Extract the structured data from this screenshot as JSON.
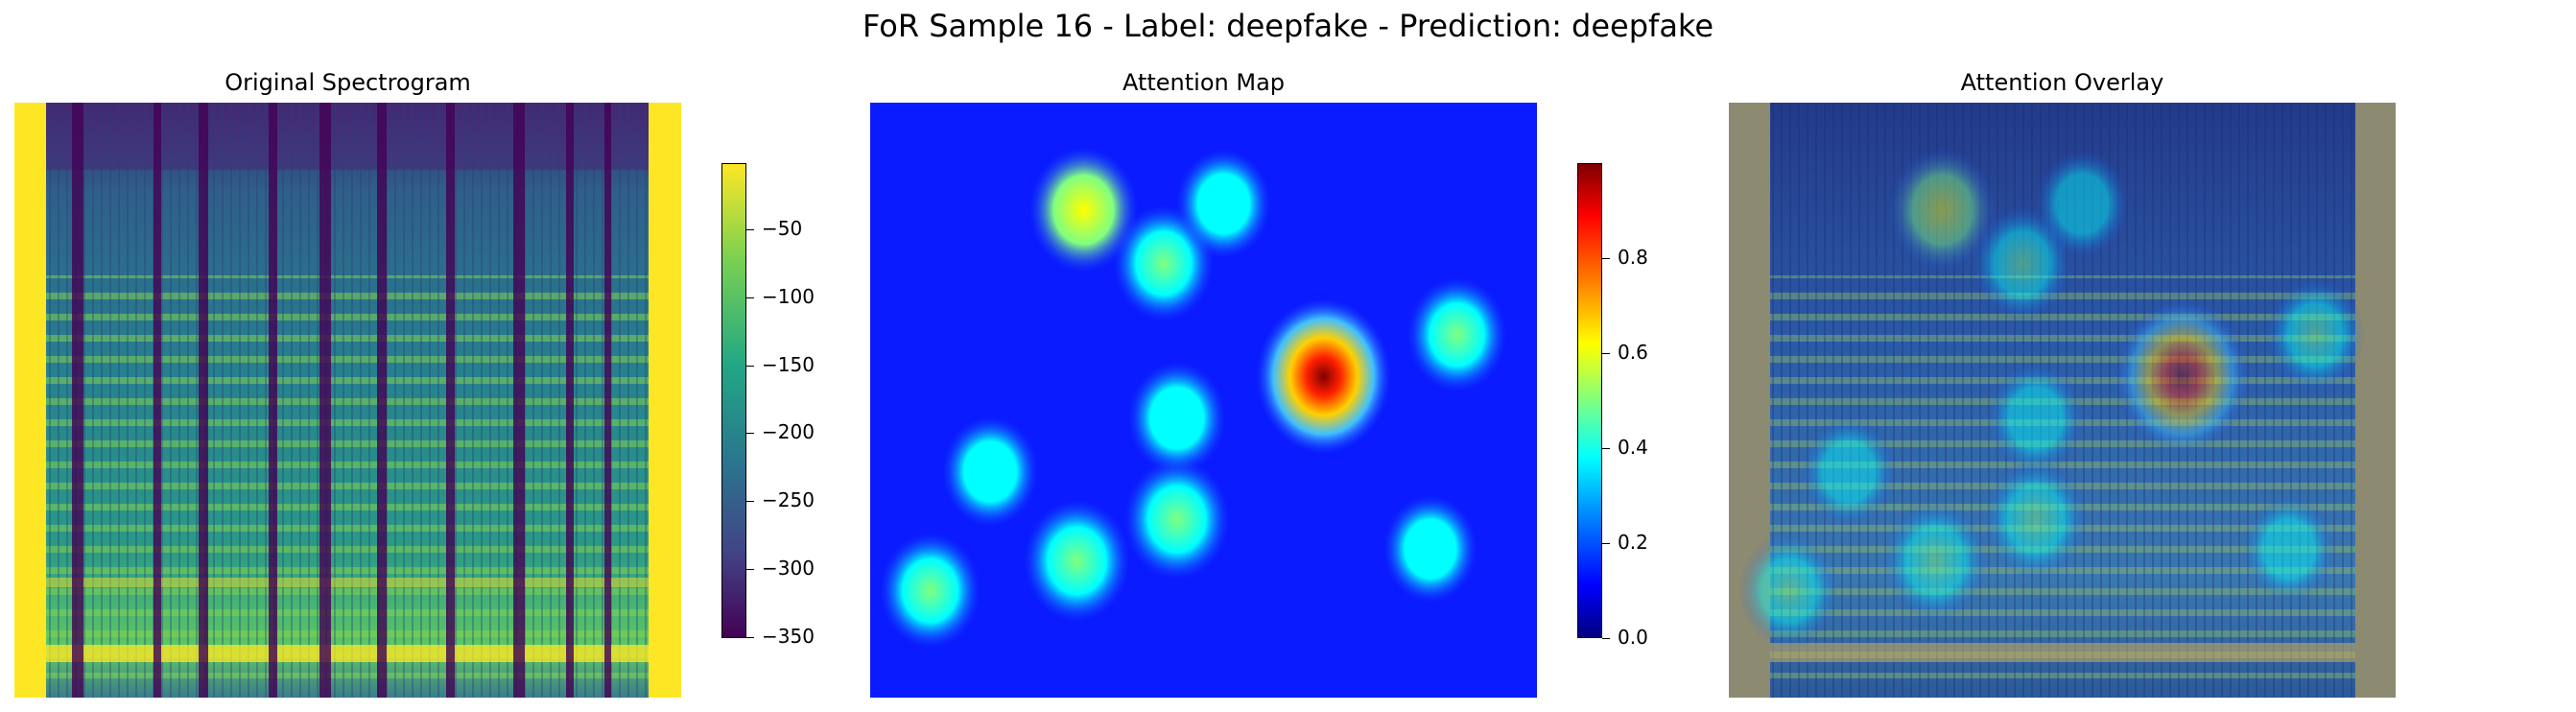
{
  "figure": {
    "title": "FoR Sample 16 - Label: deepfake - Prediction: deepfake"
  },
  "chart_data": [
    {
      "type": "heatmap",
      "title": "Original Spectrogram",
      "colormap": "viridis",
      "colorbar": {
        "range": [
          -355,
          -5
        ],
        "ticks": [
          -50,
          -100,
          -150,
          -200,
          -250,
          -300,
          -350
        ],
        "tick_labels": [
          "−50",
          "−100",
          "−150",
          "−200",
          "−250",
          "−300",
          "−350"
        ]
      },
      "axes": "off"
    },
    {
      "type": "heatmap",
      "title": "Attention Map",
      "colormap": "jet",
      "colorbar": {
        "range": [
          0,
          1
        ],
        "ticks": [
          0.8,
          0.6,
          0.4,
          0.2,
          0.0
        ],
        "tick_labels": [
          "0.8",
          "0.6",
          "0.4",
          "0.2",
          "0.0"
        ]
      },
      "hotspots": [
        {
          "x": 0.68,
          "y": 0.46,
          "value": 1.0
        },
        {
          "x": 0.32,
          "y": 0.18,
          "value": 0.55
        },
        {
          "x": 0.31,
          "y": 0.77,
          "value": 0.5
        },
        {
          "x": 0.46,
          "y": 0.7,
          "value": 0.48
        },
        {
          "x": 0.44,
          "y": 0.27,
          "value": 0.4
        },
        {
          "x": 0.09,
          "y": 0.82,
          "value": 0.4
        },
        {
          "x": 0.88,
          "y": 0.39,
          "value": 0.38
        },
        {
          "x": 0.46,
          "y": 0.53,
          "value": 0.35
        },
        {
          "x": 0.18,
          "y": 0.62,
          "value": 0.32
        },
        {
          "x": 0.53,
          "y": 0.17,
          "value": 0.3
        },
        {
          "x": 0.84,
          "y": 0.75,
          "value": 0.28
        }
      ],
      "axes": "off"
    },
    {
      "type": "heatmap",
      "title": "Attention Overlay",
      "colormap": "jet over viridis",
      "axes": "off"
    }
  ],
  "colors": {
    "viridis_low": "#440154",
    "viridis_mid": "#21918c",
    "viridis_high": "#fde725",
    "jet_low": "#00007f",
    "jet_high": "#7f0000",
    "overlay_border": "#8c8a70"
  }
}
